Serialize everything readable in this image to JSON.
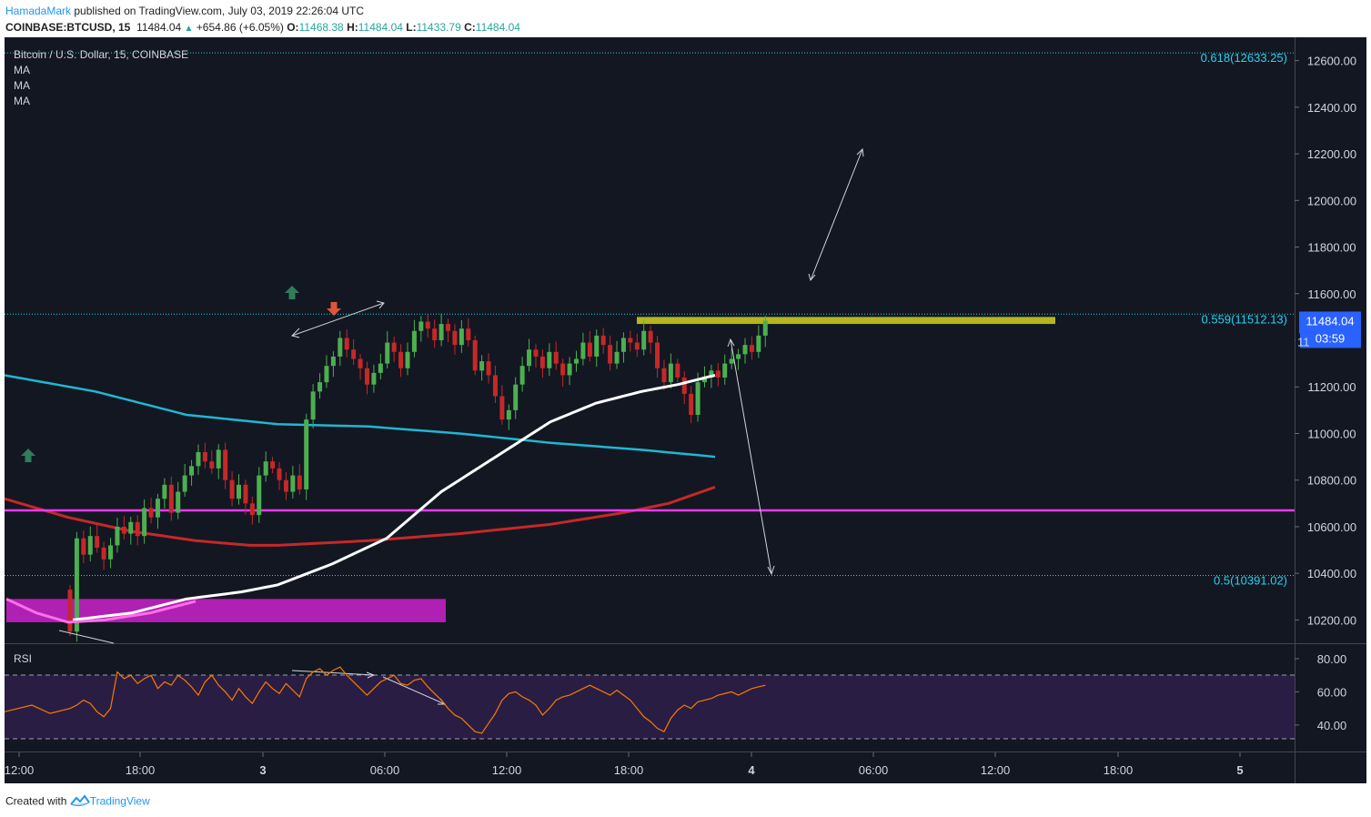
{
  "header": {
    "author": "HamadaMark",
    "published_text": "published on TradingView.com, July 03, 2019 22:26:04 UTC",
    "symbol": "COINBASE:BTCUSD, 15",
    "last": "11484.04",
    "change": "+654.86 (+6.05%)",
    "o_label": "O:",
    "o_value": "11468.38",
    "h_label": "H:",
    "h_value": "11484.04",
    "l_label": "L:",
    "l_value": "11433.79",
    "c_label": "C:",
    "c_value": "11484.04"
  },
  "footer": {
    "created_with": "Created with",
    "brand": "TradingView"
  },
  "legend": {
    "title": "Bitcoin / U.S. Dollar, 15, COINBASE",
    "ma_labels": [
      "MA",
      "MA",
      "MA"
    ]
  },
  "price_badge": {
    "price": "11484.04",
    "countdown": "03:59",
    "hidden_label": "11"
  },
  "rsi_label": "RSI",
  "colors": {
    "background": "#131722",
    "rsi_band": "#2a1d44",
    "up": "#26a69a",
    "down": "#ef5350",
    "candle_up": "#4caf50",
    "candle_down": "#c62828",
    "ma_white": "#ffffff",
    "ma_cyan": "#1eb8d4",
    "ma_red": "#c62828",
    "magenta_line": "#e83aff",
    "support_box": "#cc22cc",
    "resistance_box": "#c8c81e",
    "fib": "#22d3ee",
    "rsi": "#f57c00",
    "badge": "#2962ff"
  },
  "chart_data": {
    "type": "candlestick",
    "title": "Bitcoin / U.S. Dollar, 15, COINBASE",
    "y_range": [
      10100,
      12700
    ],
    "y_ticks": [
      "12600.00",
      "12400.00",
      "12200.00",
      "12000.00",
      "11800.00",
      "11600.00",
      "11400.00",
      "11200.00",
      "11000.00",
      "10800.00",
      "10600.00",
      "10400.00",
      "10200.00"
    ],
    "x_ticks": [
      "12:00",
      "18:00",
      "3",
      "06:00",
      "12:00",
      "18:00",
      "4",
      "06:00",
      "12:00",
      "18:00",
      "5"
    ],
    "fib_levels": [
      {
        "label": "0.618(12633.25)",
        "value": 12633.25
      },
      {
        "label": "0.559(11512.13)",
        "value": 11512.13
      },
      {
        "label": "0.5(10391.02)",
        "value": 10391.02
      }
    ],
    "horizontal_line": {
      "value": 10670
    },
    "resistance_zone": {
      "low": 11470,
      "high": 11500
    },
    "support_zone": {
      "low": 10190,
      "high": 10290
    },
    "closes": [
      10150,
      10550,
      10480,
      10560,
      10510,
      10460,
      10520,
      10600,
      10570,
      10620,
      10560,
      10680,
      10640,
      10720,
      10780,
      10660,
      10750,
      10820,
      10860,
      10920,
      10880,
      10850,
      10930,
      10800,
      10720,
      10780,
      10700,
      10650,
      10820,
      10880,
      10850,
      10800,
      10750,
      10820,
      10760,
      11060,
      11180,
      11220,
      11290,
      11330,
      11410,
      11360,
      11320,
      11280,
      11210,
      11260,
      11300,
      11390,
      11350,
      11280,
      11350,
      11440,
      11480,
      11450,
      11400,
      11470,
      11440,
      11380,
      11450,
      11400,
      11270,
      11310,
      11250,
      11160,
      11060,
      11100,
      11210,
      11290,
      11360,
      11330,
      11280,
      11350,
      11300,
      11250,
      11300,
      11320,
      11390,
      11330,
      11420,
      11380,
      11300,
      11350,
      11410,
      11390,
      11360,
      11440,
      11390,
      11280,
      11220,
      11300,
      11240,
      11170,
      11080,
      11220,
      11240,
      11270,
      11240,
      11300,
      11320,
      11340,
      11380,
      11350,
      11420,
      11484
    ],
    "indicators": [
      "MA",
      "MA",
      "MA",
      "RSI"
    ],
    "rsi": {
      "ticks": [
        "80.00",
        "60.00",
        "40.00"
      ],
      "upper_band": 70,
      "lower_band": 30,
      "values": [
        50,
        52,
        55,
        53,
        48,
        45,
        50,
        72,
        68,
        70,
        65,
        68,
        70,
        62,
        66,
        64,
        70,
        67,
        63,
        58,
        66,
        70,
        64,
        60,
        55,
        62,
        57,
        53,
        60,
        66,
        62,
        59,
        65,
        61,
        57,
        68,
        72,
        74,
        70,
        73,
        75,
        70,
        66,
        62,
        58,
        62,
        66,
        68,
        70,
        65,
        64,
        67,
        68,
        63,
        59,
        55,
        50,
        46,
        44,
        40,
        36,
        35,
        41,
        47,
        55,
        59,
        60,
        57,
        55,
        52,
        46,
        50,
        55,
        57,
        58,
        60,
        62,
        64,
        62,
        60,
        58,
        61,
        58,
        55,
        50,
        45,
        42,
        38,
        36,
        44,
        49,
        52,
        50,
        54,
        55,
        56,
        58,
        59,
        60,
        58,
        60,
        62,
        63,
        64
      ]
    }
  }
}
